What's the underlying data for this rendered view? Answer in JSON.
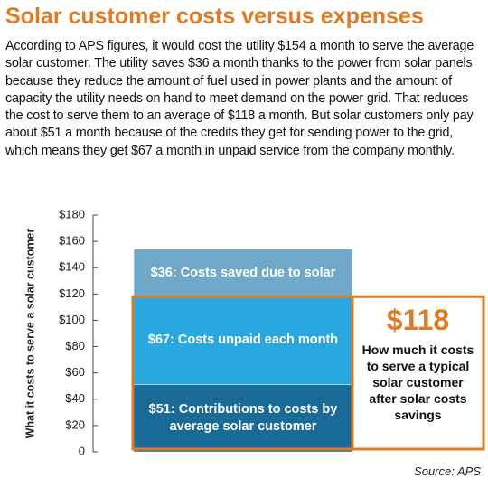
{
  "title": "Solar customer costs versus expenses",
  "description": "According to APS figures, it would cost the utility $154 a month to serve the average solar customer. The utility saves $36 a month thanks to the power from solar panels because they reduce the amount of fuel used in power plants and the amount of capacity the utility needs on hand to meet demand on the power grid. That reduces the cost to serve them to an average of $118 a month. But solar customers only pay about $51 a month because of the credits they get for sending power to the grid, which means they get $67 a month in unpaid service from the company monthly.",
  "source": "Source: APS",
  "chart_data": {
    "type": "stacked_bar",
    "y_label": "What it costs to serve a solar customer",
    "categories": [
      null
    ],
    "series": [
      {
        "name": "$51: Contributions to costs by average solar customer",
        "color": "#1a6a98",
        "values": [
          51
        ]
      },
      {
        "name": "$67: Costs unpaid each month",
        "color": "#29a8e0",
        "values": [
          67
        ]
      },
      {
        "name": "$36: Costs saved due to solar",
        "color": "#6fa8c8",
        "values": [
          36
        ]
      }
    ],
    "ylim": [
      0,
      180
    ],
    "yticks": [
      0,
      {
        "value": 20,
        "label": "$20"
      },
      {
        "value": 40,
        "label": "$40"
      },
      {
        "value": 60,
        "label": "$60"
      },
      {
        "value": 80,
        "label": "$80"
      },
      {
        "value": 100,
        "label": "$100"
      },
      {
        "value": 120,
        "label": "$120"
      },
      {
        "value": 140,
        "label": "$140"
      },
      {
        "value": 160,
        "label": "$160"
      },
      {
        "value": 180,
        "label": "$180"
      }
    ],
    "annotation": {
      "value": 118,
      "label": "$118",
      "text": "How much it costs to serve a typical solar customer after solar costs savings",
      "color": "#e07b24"
    }
  }
}
